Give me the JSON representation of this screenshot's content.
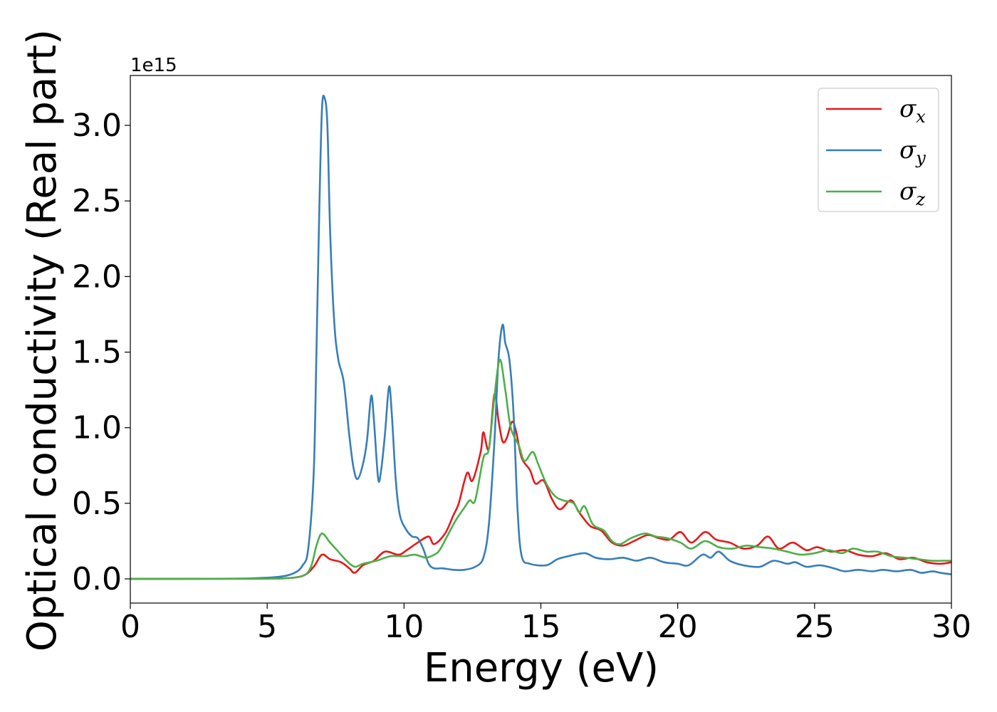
{
  "chart_data": {
    "type": "line",
    "xlabel": "Energy (eV)",
    "ylabel": "Optical conductivity (Real part)",
    "y_offset_label": "1e15",
    "xlim": [
      0,
      30
    ],
    "ylim": [
      -0.16,
      3.33
    ],
    "x_ticks": [
      0,
      5,
      10,
      15,
      20,
      25,
      30
    ],
    "x_tick_labels": [
      "0",
      "5",
      "10",
      "15",
      "20",
      "25",
      "30"
    ],
    "y_ticks": [
      0.0,
      0.5,
      1.0,
      1.5,
      2.0,
      2.5,
      3.0
    ],
    "y_tick_labels": [
      "0.0",
      "0.5",
      "1.0",
      "1.5",
      "2.0",
      "2.5",
      "3.0"
    ],
    "grid": false,
    "legend": "top-right",
    "series": [
      {
        "name": "σx",
        "base": "σ",
        "sub": "x",
        "color": "#e41a1c",
        "points": [
          [
            0,
            0
          ],
          [
            4,
            0.001
          ],
          [
            5.5,
            0.003
          ],
          [
            6.3,
            0.02
          ],
          [
            6.7,
            0.08
          ],
          [
            7.0,
            0.16
          ],
          [
            7.3,
            0.13
          ],
          [
            7.7,
            0.11
          ],
          [
            8.0,
            0.07
          ],
          [
            8.2,
            0.04
          ],
          [
            8.5,
            0.09
          ],
          [
            8.9,
            0.12
          ],
          [
            9.3,
            0.18
          ],
          [
            9.8,
            0.16
          ],
          [
            10.1,
            0.19
          ],
          [
            10.5,
            0.24
          ],
          [
            10.9,
            0.28
          ],
          [
            11.1,
            0.23
          ],
          [
            11.5,
            0.3
          ],
          [
            11.8,
            0.42
          ],
          [
            12.0,
            0.5
          ],
          [
            12.3,
            0.7
          ],
          [
            12.5,
            0.65
          ],
          [
            12.8,
            0.84
          ],
          [
            12.9,
            0.97
          ],
          [
            13.1,
            0.86
          ],
          [
            13.3,
            1.22
          ],
          [
            13.45,
            1.05
          ],
          [
            13.6,
            0.91
          ],
          [
            13.75,
            0.93
          ],
          [
            13.95,
            1.04
          ],
          [
            14.1,
            0.97
          ],
          [
            14.3,
            0.8
          ],
          [
            14.6,
            0.72
          ],
          [
            14.8,
            0.63
          ],
          [
            15.1,
            0.65
          ],
          [
            15.4,
            0.53
          ],
          [
            15.7,
            0.46
          ],
          [
            16.1,
            0.52
          ],
          [
            16.4,
            0.44
          ],
          [
            16.8,
            0.35
          ],
          [
            17.2,
            0.32
          ],
          [
            17.6,
            0.24
          ],
          [
            18.0,
            0.22
          ],
          [
            18.4,
            0.25
          ],
          [
            18.9,
            0.29
          ],
          [
            19.3,
            0.27
          ],
          [
            19.7,
            0.26
          ],
          [
            20.1,
            0.31
          ],
          [
            20.5,
            0.24
          ],
          [
            21.0,
            0.31
          ],
          [
            21.4,
            0.26
          ],
          [
            21.9,
            0.24
          ],
          [
            22.4,
            0.2
          ],
          [
            22.9,
            0.22
          ],
          [
            23.3,
            0.28
          ],
          [
            23.7,
            0.2
          ],
          [
            24.2,
            0.24
          ],
          [
            24.7,
            0.19
          ],
          [
            25.1,
            0.21
          ],
          [
            25.6,
            0.18
          ],
          [
            26.1,
            0.19
          ],
          [
            26.6,
            0.16
          ],
          [
            27.1,
            0.15
          ],
          [
            27.6,
            0.17
          ],
          [
            28.1,
            0.13
          ],
          [
            28.6,
            0.14
          ],
          [
            29.1,
            0.11
          ],
          [
            29.6,
            0.1
          ],
          [
            30,
            0.11
          ]
        ]
      },
      {
        "name": "σy",
        "base": "σ",
        "sub": "y",
        "color": "#377eb8",
        "points": [
          [
            0,
            0
          ],
          [
            3,
            0.001
          ],
          [
            4.5,
            0.004
          ],
          [
            5.5,
            0.015
          ],
          [
            6.0,
            0.04
          ],
          [
            6.3,
            0.09
          ],
          [
            6.5,
            0.2
          ],
          [
            6.7,
            0.7
          ],
          [
            6.8,
            1.5
          ],
          [
            6.9,
            2.4
          ],
          [
            7.0,
            3.1
          ],
          [
            7.1,
            3.18
          ],
          [
            7.2,
            3.0
          ],
          [
            7.3,
            2.3
          ],
          [
            7.45,
            1.7
          ],
          [
            7.6,
            1.45
          ],
          [
            7.8,
            1.3
          ],
          [
            8.0,
            0.95
          ],
          [
            8.15,
            0.74
          ],
          [
            8.3,
            0.66
          ],
          [
            8.5,
            0.76
          ],
          [
            8.65,
            0.92
          ],
          [
            8.8,
            1.21
          ],
          [
            8.9,
            1.05
          ],
          [
            9.05,
            0.67
          ],
          [
            9.15,
            0.7
          ],
          [
            9.3,
            0.95
          ],
          [
            9.45,
            1.27
          ],
          [
            9.55,
            1.1
          ],
          [
            9.7,
            0.65
          ],
          [
            9.85,
            0.42
          ],
          [
            10.1,
            0.32
          ],
          [
            10.3,
            0.28
          ],
          [
            10.5,
            0.27
          ],
          [
            10.7,
            0.2
          ],
          [
            10.9,
            0.1
          ],
          [
            11.1,
            0.07
          ],
          [
            11.4,
            0.07
          ],
          [
            11.8,
            0.06
          ],
          [
            12.2,
            0.06
          ],
          [
            12.6,
            0.08
          ],
          [
            12.9,
            0.14
          ],
          [
            13.1,
            0.36
          ],
          [
            13.3,
            0.9
          ],
          [
            13.45,
            1.45
          ],
          [
            13.6,
            1.68
          ],
          [
            13.7,
            1.56
          ],
          [
            13.85,
            1.45
          ],
          [
            14.0,
            1.1
          ],
          [
            14.15,
            0.45
          ],
          [
            14.3,
            0.15
          ],
          [
            14.6,
            0.1
          ],
          [
            15.2,
            0.09
          ],
          [
            15.6,
            0.13
          ],
          [
            16.0,
            0.15
          ],
          [
            16.6,
            0.17
          ],
          [
            17.0,
            0.14
          ],
          [
            17.5,
            0.13
          ],
          [
            18.0,
            0.14
          ],
          [
            18.5,
            0.12
          ],
          [
            19.0,
            0.14
          ],
          [
            19.5,
            0.11
          ],
          [
            20.0,
            0.1
          ],
          [
            20.4,
            0.09
          ],
          [
            20.9,
            0.16
          ],
          [
            21.2,
            0.14
          ],
          [
            21.5,
            0.18
          ],
          [
            21.9,
            0.12
          ],
          [
            22.4,
            0.09
          ],
          [
            23.0,
            0.08
          ],
          [
            23.5,
            0.12
          ],
          [
            24.0,
            0.1
          ],
          [
            24.3,
            0.11
          ],
          [
            24.7,
            0.08
          ],
          [
            25.2,
            0.09
          ],
          [
            25.7,
            0.07
          ],
          [
            26.1,
            0.05
          ],
          [
            26.6,
            0.06
          ],
          [
            27.1,
            0.05
          ],
          [
            27.5,
            0.06
          ],
          [
            28.0,
            0.05
          ],
          [
            28.5,
            0.06
          ],
          [
            28.9,
            0.04
          ],
          [
            29.3,
            0.05
          ],
          [
            29.6,
            0.04
          ],
          [
            30,
            0.03
          ]
        ]
      },
      {
        "name": "σz",
        "base": "σ",
        "sub": "z",
        "color": "#4daf4a",
        "points": [
          [
            0,
            0
          ],
          [
            4,
            0.001
          ],
          [
            5.5,
            0.003
          ],
          [
            6.3,
            0.02
          ],
          [
            6.6,
            0.08
          ],
          [
            6.8,
            0.22
          ],
          [
            7.0,
            0.3
          ],
          [
            7.3,
            0.24
          ],
          [
            7.6,
            0.18
          ],
          [
            7.9,
            0.12
          ],
          [
            8.2,
            0.08
          ],
          [
            8.5,
            0.1
          ],
          [
            9.0,
            0.12
          ],
          [
            9.5,
            0.15
          ],
          [
            10.0,
            0.15
          ],
          [
            10.4,
            0.16
          ],
          [
            10.8,
            0.14
          ],
          [
            11.1,
            0.16
          ],
          [
            11.3,
            0.19
          ],
          [
            11.6,
            0.29
          ],
          [
            11.9,
            0.39
          ],
          [
            12.2,
            0.47
          ],
          [
            12.4,
            0.52
          ],
          [
            12.6,
            0.52
          ],
          [
            12.9,
            0.8
          ],
          [
            13.1,
            0.86
          ],
          [
            13.3,
            1.2
          ],
          [
            13.5,
            1.45
          ],
          [
            13.7,
            1.25
          ],
          [
            13.9,
            1.0
          ],
          [
            14.2,
            0.88
          ],
          [
            14.4,
            0.78
          ],
          [
            14.7,
            0.84
          ],
          [
            14.9,
            0.76
          ],
          [
            15.2,
            0.63
          ],
          [
            15.5,
            0.55
          ],
          [
            15.8,
            0.52
          ],
          [
            16.2,
            0.5
          ],
          [
            16.4,
            0.44
          ],
          [
            16.6,
            0.48
          ],
          [
            16.9,
            0.36
          ],
          [
            17.3,
            0.32
          ],
          [
            17.6,
            0.25
          ],
          [
            17.9,
            0.23
          ],
          [
            18.3,
            0.27
          ],
          [
            18.8,
            0.3
          ],
          [
            19.2,
            0.28
          ],
          [
            19.6,
            0.27
          ],
          [
            20.1,
            0.24
          ],
          [
            20.5,
            0.2
          ],
          [
            21.0,
            0.25
          ],
          [
            21.5,
            0.21
          ],
          [
            22.0,
            0.2
          ],
          [
            22.5,
            0.22
          ],
          [
            23.0,
            0.21
          ],
          [
            23.5,
            0.2
          ],
          [
            24.0,
            0.18
          ],
          [
            24.5,
            0.16
          ],
          [
            25.0,
            0.17
          ],
          [
            25.5,
            0.19
          ],
          [
            26.0,
            0.17
          ],
          [
            26.4,
            0.2
          ],
          [
            26.9,
            0.18
          ],
          [
            27.3,
            0.18
          ],
          [
            27.8,
            0.15
          ],
          [
            28.3,
            0.14
          ],
          [
            28.8,
            0.13
          ],
          [
            29.3,
            0.12
          ],
          [
            29.7,
            0.12
          ],
          [
            30,
            0.12
          ]
        ]
      }
    ]
  }
}
